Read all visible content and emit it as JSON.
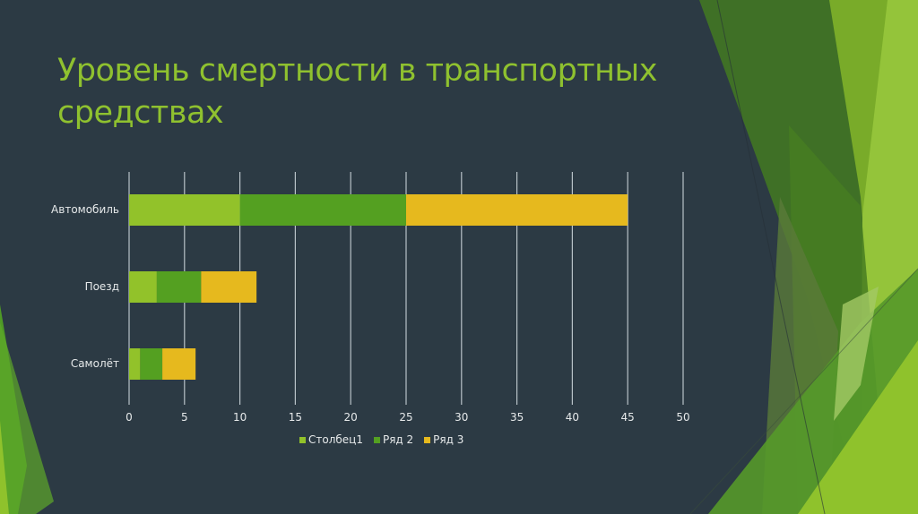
{
  "slide": {
    "title": "Уровень смертности в транспортных средствах",
    "background_color": "#2c3a44",
    "title_color": "#8fc12f"
  },
  "chart_data": {
    "type": "bar",
    "orientation": "horizontal",
    "stacked": true,
    "title": "",
    "xlabel": "",
    "ylabel": "",
    "categories": [
      "Автомобиль",
      "Поезд",
      "Самолёт"
    ],
    "series": [
      {
        "name": "Столбец1",
        "color": "#92c22a",
        "values": [
          10,
          2.5,
          1
        ]
      },
      {
        "name": "Ряд 2",
        "color": "#54a021",
        "values": [
          15,
          4,
          2
        ]
      },
      {
        "name": "Ряд 3",
        "color": "#e6b91e",
        "values": [
          20,
          5,
          3
        ]
      }
    ],
    "xlim": [
      0,
      50
    ],
    "xticks": [
      "0",
      "5",
      "10",
      "15",
      "20",
      "25",
      "30",
      "35",
      "40",
      "45",
      "50"
    ],
    "grid": "vertical",
    "legend_position": "bottom"
  }
}
